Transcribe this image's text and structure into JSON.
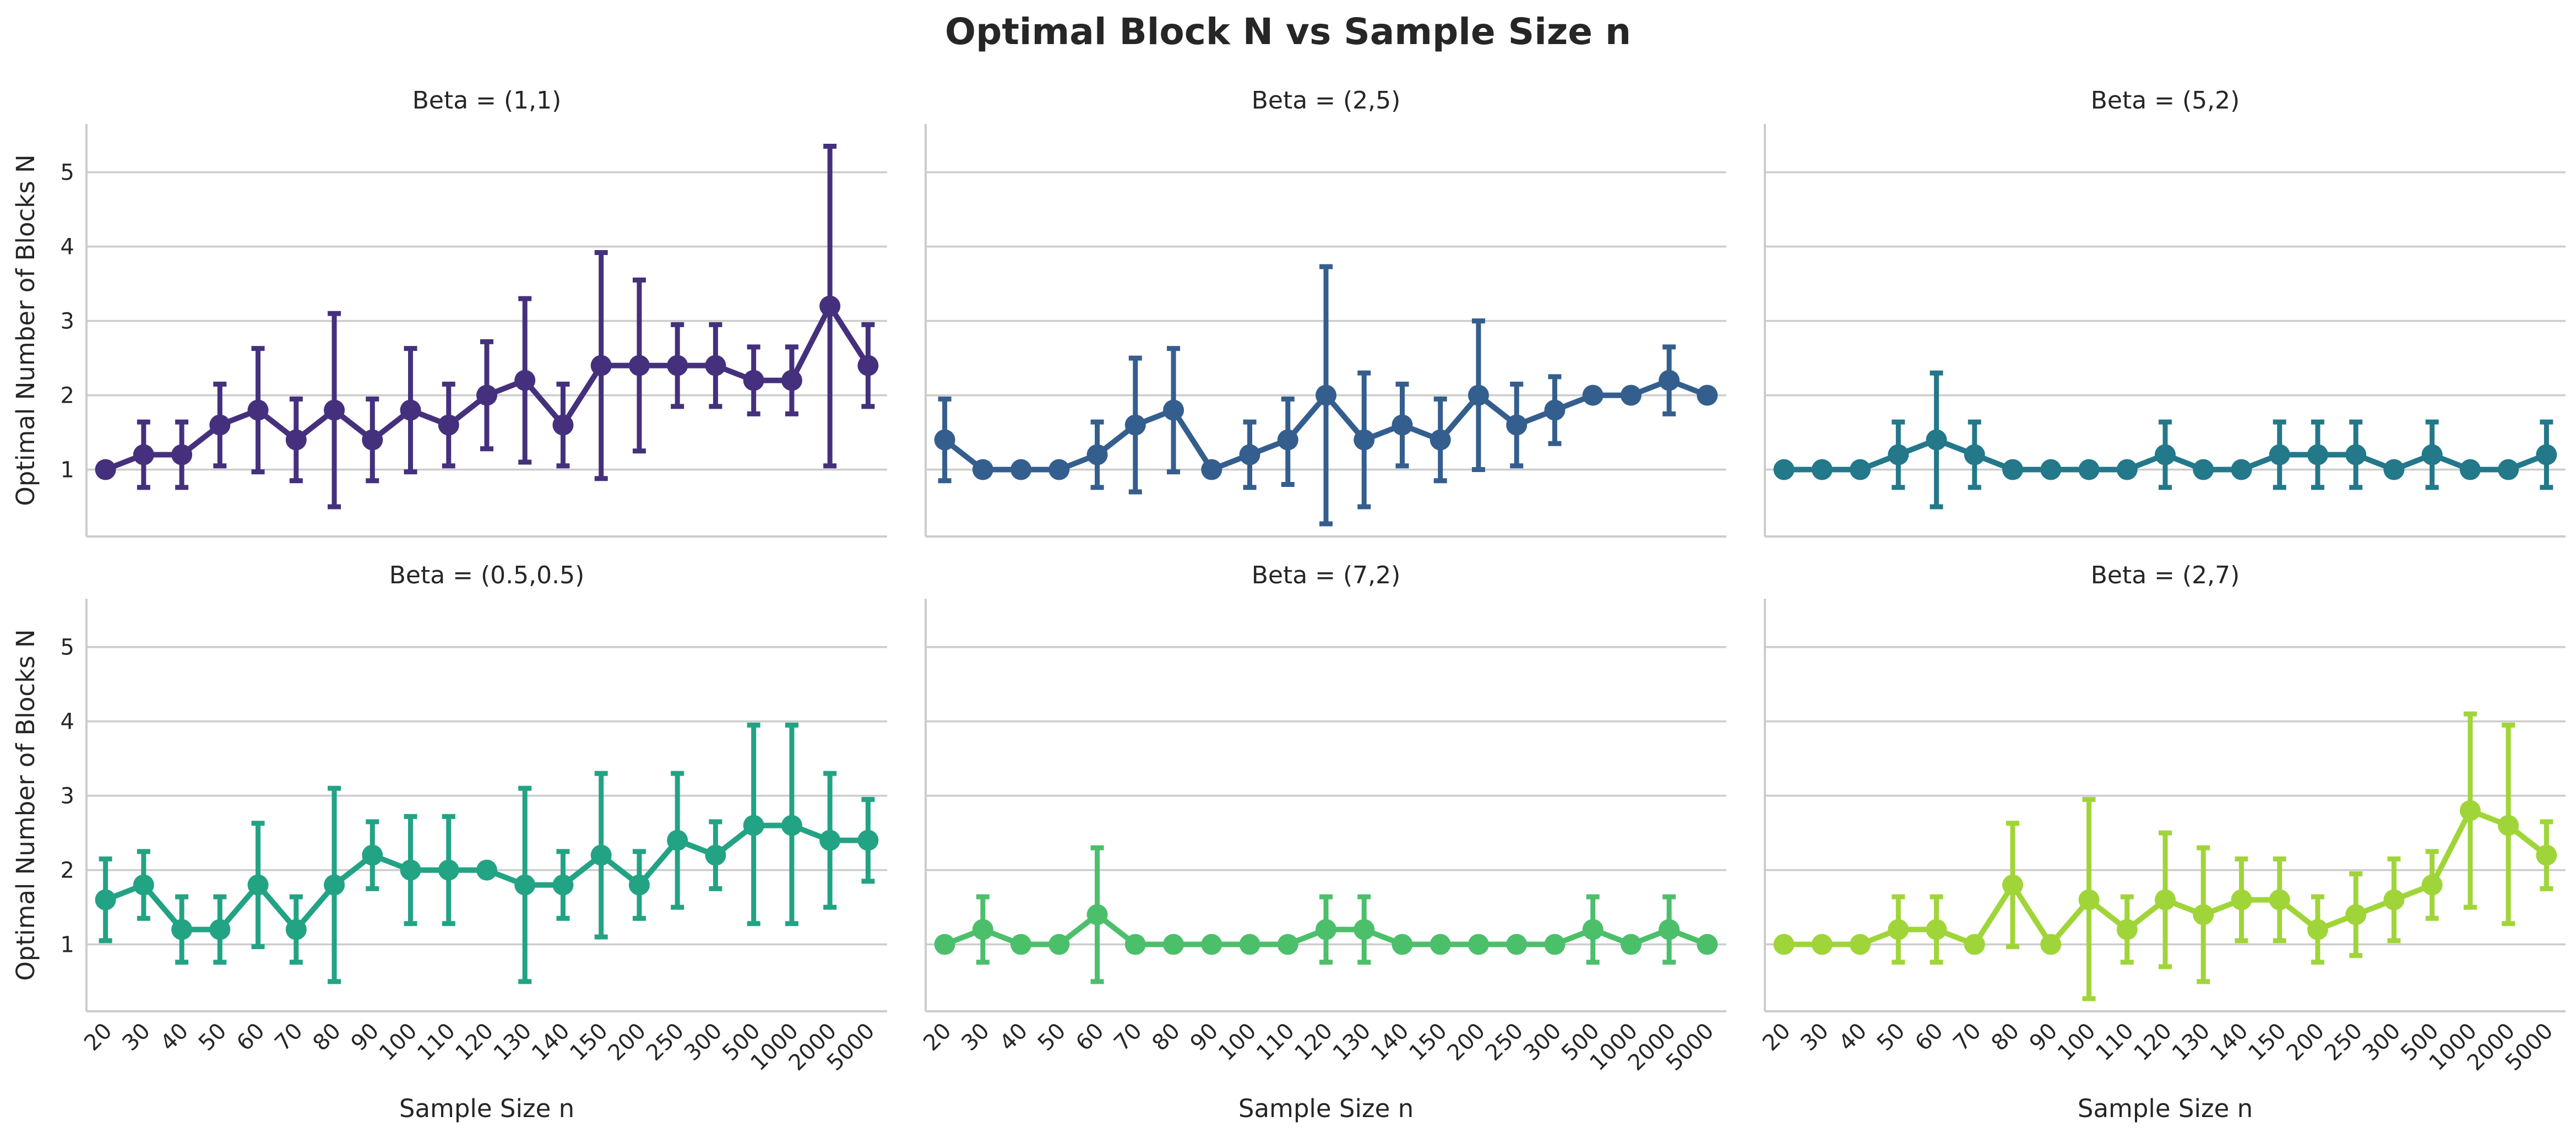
{
  "title": "Optimal Block N vs Sample Size n",
  "chart_data": {
    "type": "line",
    "title": "Optimal Block N vs Sample Size n",
    "xlabel": "Sample Size n",
    "ylabel": "Optimal Number of Blocks N",
    "categories": [
      "20",
      "30",
      "40",
      "50",
      "60",
      "70",
      "80",
      "90",
      "100",
      "110",
      "120",
      "130",
      "140",
      "150",
      "200",
      "250",
      "300",
      "500",
      "1000",
      "2000",
      "5000"
    ],
    "yticks": [
      "1",
      "2",
      "3",
      "4",
      "5"
    ],
    "ylim": [
      0.1,
      5.65
    ],
    "grid": "horizontal",
    "panels": [
      {
        "title": "Beta = (1,1)",
        "color": "#45307d",
        "values": [
          1.0,
          1.2,
          1.2,
          1.6,
          1.8,
          1.4,
          1.8,
          1.4,
          1.8,
          1.6,
          2.0,
          2.2,
          1.6,
          2.4,
          2.4,
          2.4,
          2.4,
          2.2,
          2.2,
          3.2,
          2.4
        ],
        "err_low": [
          1.0,
          0.76,
          0.76,
          1.05,
          0.97,
          0.85,
          0.5,
          0.85,
          0.97,
          1.05,
          1.28,
          1.1,
          1.05,
          0.88,
          1.25,
          1.85,
          1.85,
          1.75,
          1.75,
          1.05,
          1.85
        ],
        "err_high": [
          1.0,
          1.64,
          1.64,
          2.15,
          2.63,
          1.95,
          3.1,
          1.95,
          2.63,
          2.15,
          2.72,
          3.3,
          2.15,
          3.92,
          3.55,
          2.95,
          2.95,
          2.65,
          2.65,
          5.35,
          2.95
        ]
      },
      {
        "title": "Beta = (2,5)",
        "color": "#345e8e",
        "values": [
          1.4,
          1.0,
          1.0,
          1.0,
          1.2,
          1.6,
          1.8,
          1.0,
          1.2,
          1.4,
          2.0,
          1.4,
          1.6,
          1.4,
          2.0,
          1.6,
          1.8,
          2.0,
          2.0,
          2.2,
          2.0
        ],
        "err_low": [
          0.85,
          1.0,
          1.0,
          1.0,
          0.76,
          0.7,
          0.97,
          1.0,
          0.76,
          0.8,
          0.27,
          0.5,
          1.05,
          0.85,
          1.0,
          1.05,
          1.35,
          2.0,
          2.0,
          1.75,
          2.0
        ],
        "err_high": [
          1.95,
          1.0,
          1.0,
          1.0,
          1.64,
          2.5,
          2.63,
          1.0,
          1.64,
          1.95,
          3.73,
          2.3,
          2.15,
          1.95,
          3.0,
          2.15,
          2.25,
          2.0,
          2.0,
          2.65,
          2.0
        ]
      },
      {
        "title": "Beta = (5,2)",
        "color": "#23788a",
        "values": [
          1.0,
          1.0,
          1.0,
          1.2,
          1.4,
          1.2,
          1.0,
          1.0,
          1.0,
          1.0,
          1.2,
          1.0,
          1.0,
          1.2,
          1.2,
          1.2,
          1.0,
          1.2,
          1.0,
          1.0,
          1.2
        ],
        "err_low": [
          1.0,
          1.0,
          1.0,
          0.76,
          0.5,
          0.76,
          1.0,
          1.0,
          1.0,
          1.0,
          0.76,
          1.0,
          1.0,
          0.76,
          0.76,
          0.76,
          1.0,
          0.76,
          1.0,
          1.0,
          0.76
        ],
        "err_high": [
          1.0,
          1.0,
          1.0,
          1.64,
          2.3,
          1.64,
          1.0,
          1.0,
          1.0,
          1.0,
          1.64,
          1.0,
          1.0,
          1.64,
          1.64,
          1.64,
          1.0,
          1.64,
          1.0,
          1.0,
          1.64
        ]
      },
      {
        "title": "Beta = (0.5,0.5)",
        "color": "#22a384",
        "values": [
          1.6,
          1.8,
          1.2,
          1.2,
          1.8,
          1.2,
          1.8,
          2.2,
          2.0,
          2.0,
          2.0,
          1.8,
          1.8,
          2.2,
          1.8,
          2.4,
          2.2,
          2.6,
          2.6,
          2.4,
          2.4
        ],
        "err_low": [
          1.05,
          1.35,
          0.76,
          0.76,
          0.97,
          0.76,
          0.5,
          1.75,
          1.28,
          1.28,
          2.0,
          0.5,
          1.35,
          1.1,
          1.35,
          1.5,
          1.75,
          1.28,
          1.28,
          1.5,
          1.85
        ],
        "err_high": [
          2.15,
          2.25,
          1.64,
          1.64,
          2.63,
          1.64,
          3.1,
          2.65,
          2.72,
          2.72,
          2.0,
          3.1,
          2.25,
          3.3,
          2.25,
          3.3,
          2.65,
          3.95,
          3.95,
          3.3,
          2.95
        ]
      },
      {
        "title": "Beta = (7,2)",
        "color": "#4cbf6b",
        "values": [
          1.0,
          1.2,
          1.0,
          1.0,
          1.4,
          1.0,
          1.0,
          1.0,
          1.0,
          1.0,
          1.2,
          1.2,
          1.0,
          1.0,
          1.0,
          1.0,
          1.0,
          1.2,
          1.0,
          1.2,
          1.0
        ],
        "err_low": [
          1.0,
          0.76,
          1.0,
          1.0,
          0.5,
          1.0,
          1.0,
          1.0,
          1.0,
          1.0,
          0.76,
          0.76,
          1.0,
          1.0,
          1.0,
          1.0,
          1.0,
          0.76,
          1.0,
          0.76,
          1.0
        ],
        "err_high": [
          1.0,
          1.64,
          1.0,
          1.0,
          2.3,
          1.0,
          1.0,
          1.0,
          1.0,
          1.0,
          1.64,
          1.64,
          1.0,
          1.0,
          1.0,
          1.0,
          1.0,
          1.64,
          1.0,
          1.64,
          1.0
        ]
      },
      {
        "title": "Beta = (2,7)",
        "color": "#a0d539",
        "values": [
          1.0,
          1.0,
          1.0,
          1.2,
          1.2,
          1.0,
          1.8,
          1.0,
          1.6,
          1.2,
          1.6,
          1.4,
          1.6,
          1.6,
          1.2,
          1.4,
          1.6,
          1.8,
          2.8,
          2.6,
          2.2
        ],
        "err_low": [
          1.0,
          1.0,
          1.0,
          0.76,
          0.76,
          1.0,
          0.97,
          1.0,
          0.27,
          0.76,
          0.7,
          0.5,
          1.05,
          1.05,
          0.76,
          0.85,
          1.05,
          1.35,
          1.5,
          1.28,
          1.75
        ],
        "err_high": [
          1.0,
          1.0,
          1.0,
          1.64,
          1.64,
          1.0,
          2.63,
          1.0,
          2.95,
          1.64,
          2.5,
          2.3,
          2.15,
          2.15,
          1.64,
          1.95,
          2.15,
          2.25,
          4.1,
          3.95,
          2.65
        ]
      }
    ]
  }
}
